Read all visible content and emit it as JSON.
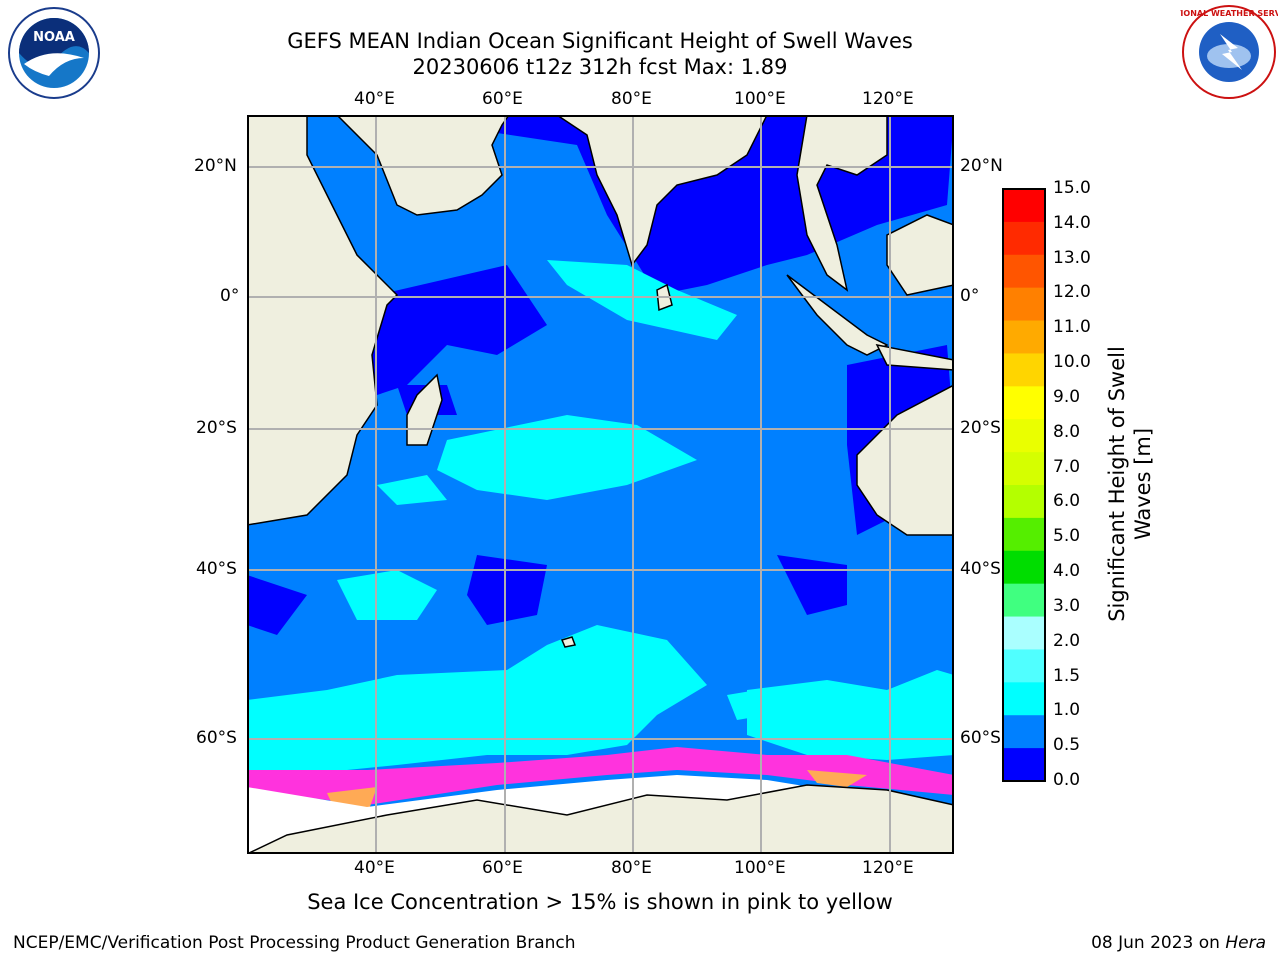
{
  "title": {
    "line1": "GEFS MEAN Indian Ocean Significant Height of Swell Waves",
    "line2": "20230606 t12z 312h fcst   Max: 1.89"
  },
  "map": {
    "lon_ticks": [
      "40°E",
      "60°E",
      "80°E",
      "100°E",
      "120°E"
    ],
    "lat_ticks": [
      "20°N",
      "0°",
      "20°S",
      "40°S",
      "60°S"
    ],
    "lon_values": [
      40,
      60,
      80,
      100,
      120
    ],
    "lat_values": [
      20,
      0,
      -20,
      -40,
      -60
    ],
    "gridlines": true
  },
  "colorbar": {
    "label_line1": "Significant Height of Swell",
    "label_line2": "Waves [m]",
    "ticks": [
      "15.0",
      "14.0",
      "13.0",
      "12.0",
      "11.0",
      "10.0",
      "9.0",
      "8.0",
      "7.0",
      "6.0",
      "5.0",
      "4.0",
      "3.0",
      "2.0",
      "1.5",
      "1.0",
      "0.5",
      "0.0"
    ],
    "colors_top_to_bottom": [
      "#ff0000",
      "#ff2a00",
      "#ff5500",
      "#ff8000",
      "#ffaa00",
      "#ffd500",
      "#ffff00",
      "#eaff00",
      "#d5ff00",
      "#b4ff00",
      "#55ee00",
      "#00dd00",
      "#40ff80",
      "#aaffff",
      "#50ffff",
      "#00ffff",
      "#0080ff",
      "#0000ff"
    ]
  },
  "caption": "Sea Ice Concentration > 15% is shown in pink to yellow",
  "footer": {
    "left": "NCEP/EMC/Verification Post Processing Product Generation Branch",
    "date": "08 Jun 2023 on ",
    "machine": "Hera"
  },
  "logos": {
    "left": "noaa-logo",
    "left_text": "NOAA",
    "right": "nws-logo",
    "right_text": "NATIONAL WEATHER SERVICE"
  },
  "colors": {
    "ocean_low": "#0000ff",
    "ocean_mid": "#0080ff",
    "ocean_high": "#00ffff",
    "land": "#efefdf",
    "ice": "#ffffff",
    "ice_edge": "#ff33dd",
    "grid": "#b0b0b0"
  }
}
